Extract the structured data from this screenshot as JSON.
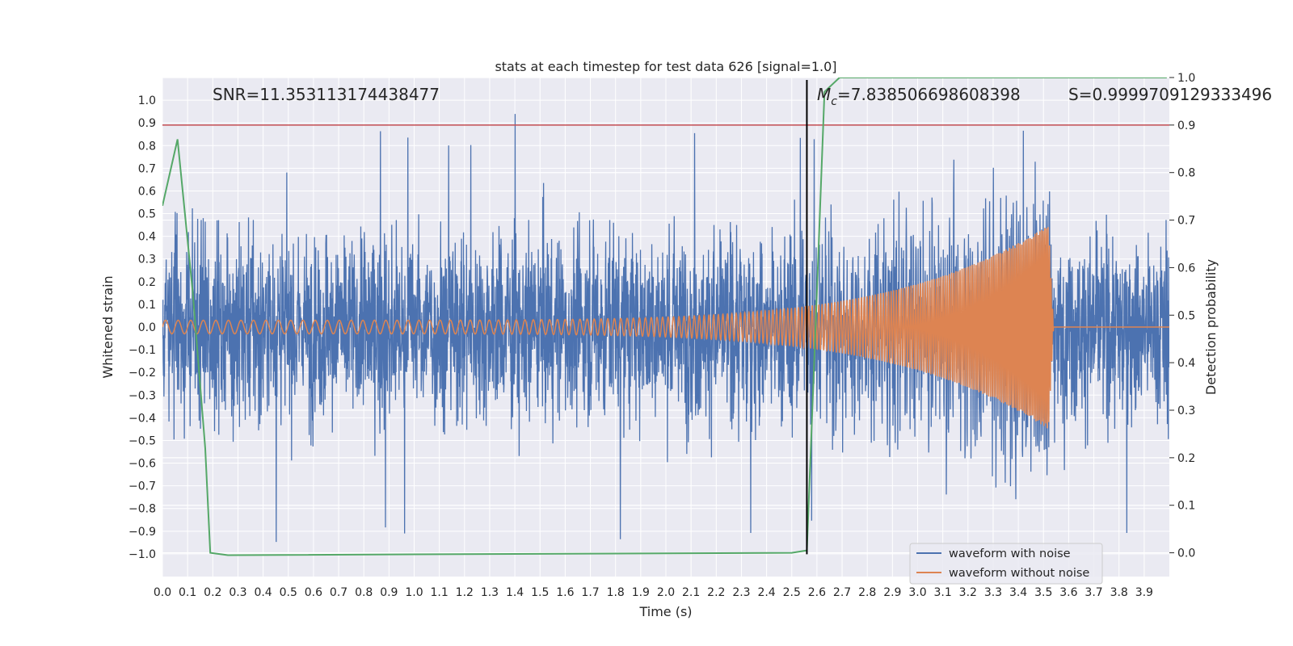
{
  "chart_data": {
    "type": "line",
    "title": "stats at each timestep for test data 626 [signal=1.0]",
    "xlabel": "Time (s)",
    "ylabel": "Whitened strain",
    "y2label": "Detection probability",
    "xlim": [
      0.0,
      4.0
    ],
    "ylim": [
      -1.1,
      1.1
    ],
    "y2lim": [
      -0.05,
      1.0
    ],
    "x_ticks": [
      "0.0",
      "0.1",
      "0.2",
      "0.3",
      "0.4",
      "0.5",
      "0.6",
      "0.7",
      "0.8",
      "0.9",
      "1.0",
      "1.1",
      "1.2",
      "1.3",
      "1.4",
      "1.5",
      "1.6",
      "1.7",
      "1.8",
      "1.9",
      "2.0",
      "2.1",
      "2.2",
      "2.3",
      "2.4",
      "2.5",
      "2.6",
      "2.7",
      "2.8",
      "2.9",
      "3.0",
      "3.1",
      "3.2",
      "3.3",
      "3.4",
      "3.5",
      "3.6",
      "3.7",
      "3.8",
      "3.9"
    ],
    "y_ticks": [
      "1.0",
      "0.9",
      "0.8",
      "0.7",
      "0.6",
      "0.5",
      "0.4",
      "0.3",
      "0.2",
      "0.1",
      "0.0",
      "−0.1",
      "−0.2",
      "−0.3",
      "−0.4",
      "−0.5",
      "−0.6",
      "−0.7",
      "−0.8",
      "−0.9",
      "−1.0"
    ],
    "y2_ticks": [
      "1.0",
      "0.9",
      "0.8",
      "0.7",
      "0.6",
      "0.5",
      "0.4",
      "0.3",
      "0.2",
      "0.1",
      "0.0"
    ],
    "grid": true,
    "annotations": {
      "snr": "SNR=11.353113174438477",
      "mc_symbol": "M",
      "mc_sub": "c",
      "mc_value": "=7.838506698608398",
      "s": "S=0.9999709129333496"
    },
    "threshold": {
      "value": 0.9,
      "axis": "right",
      "color": "#c44e52"
    },
    "merger_time": 2.56,
    "series": [
      {
        "name": "waveform with noise",
        "color": "#4c72b0",
        "axis": "left",
        "noise_amplitude": 0.45,
        "peak_amplitude": 1.0
      },
      {
        "name": "waveform without noise",
        "color": "#dd8452",
        "axis": "left",
        "start_amplitude": 0.03,
        "peak_amplitude": 0.45,
        "peak_time": 3.52,
        "end_time": 3.54,
        "start_freq_hz": 20,
        "end_freq_hz": 160
      },
      {
        "name": "Detection probability",
        "color": "#55a868",
        "axis": "right",
        "x": [
          0.0,
          0.06,
          0.12,
          0.17,
          0.19,
          0.26,
          2.5,
          2.56,
          2.6,
          2.63,
          2.69,
          3.99
        ],
        "y": [
          0.73,
          0.87,
          0.55,
          0.22,
          0.0,
          -0.005,
          0.0,
          0.005,
          0.55,
          0.97,
          1.0,
          1.0
        ]
      }
    ],
    "legend": {
      "position": "lower-right",
      "entries": [
        "waveform with noise",
        "waveform without noise"
      ]
    }
  }
}
